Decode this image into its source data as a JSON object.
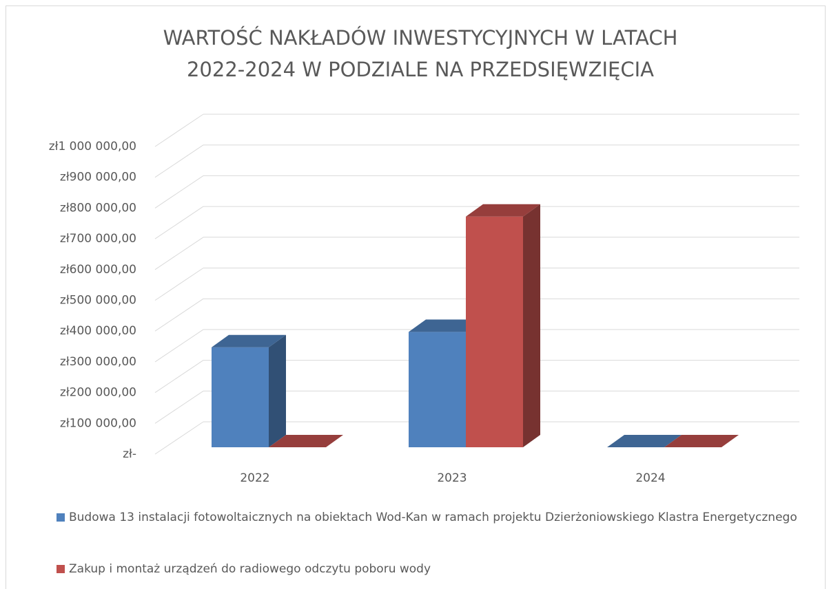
{
  "chart_data": {
    "type": "bar3d",
    "title": "WARTOŚĆ NAKŁADÓW INWESTYCYJNYCH  W LATACH\n2022-2024 W PODZIALE NA PRZEDSIĘWZIĘCIA",
    "categories": [
      "2022",
      "2023",
      "2024"
    ],
    "series": [
      {
        "name": "Budowa 13 instalacji fotowoltaicznych na obiektach Wod-Kan w ramach projektu Dzierżoniowskiego Klastra Energetycznego",
        "color": "#4f81bd",
        "values": [
          325000,
          375000,
          0
        ]
      },
      {
        "name": "Zakup i montaż urządzeń do radiowego odczytu poboru wody",
        "color": "#c0504d",
        "values": [
          0,
          750000,
          0
        ]
      }
    ],
    "ylim": [
      0,
      1000000
    ],
    "yticks": [
      {
        "value": 0,
        "label": "zł-"
      },
      {
        "value": 100000,
        "label": "zł100 000,00"
      },
      {
        "value": 200000,
        "label": "zł200 000,00"
      },
      {
        "value": 300000,
        "label": "zł300 000,00"
      },
      {
        "value": 400000,
        "label": "zł400 000,00"
      },
      {
        "value": 500000,
        "label": "zł500 000,00"
      },
      {
        "value": 600000,
        "label": "zł600 000,00"
      },
      {
        "value": 700000,
        "label": "zł700 000,00"
      },
      {
        "value": 800000,
        "label": "zł800 000,00"
      },
      {
        "value": 900000,
        "label": "zł900 000,00"
      },
      {
        "value": 1000000,
        "label": "zł1 000 000,00"
      }
    ],
    "grid": true,
    "legend": "bottom"
  }
}
